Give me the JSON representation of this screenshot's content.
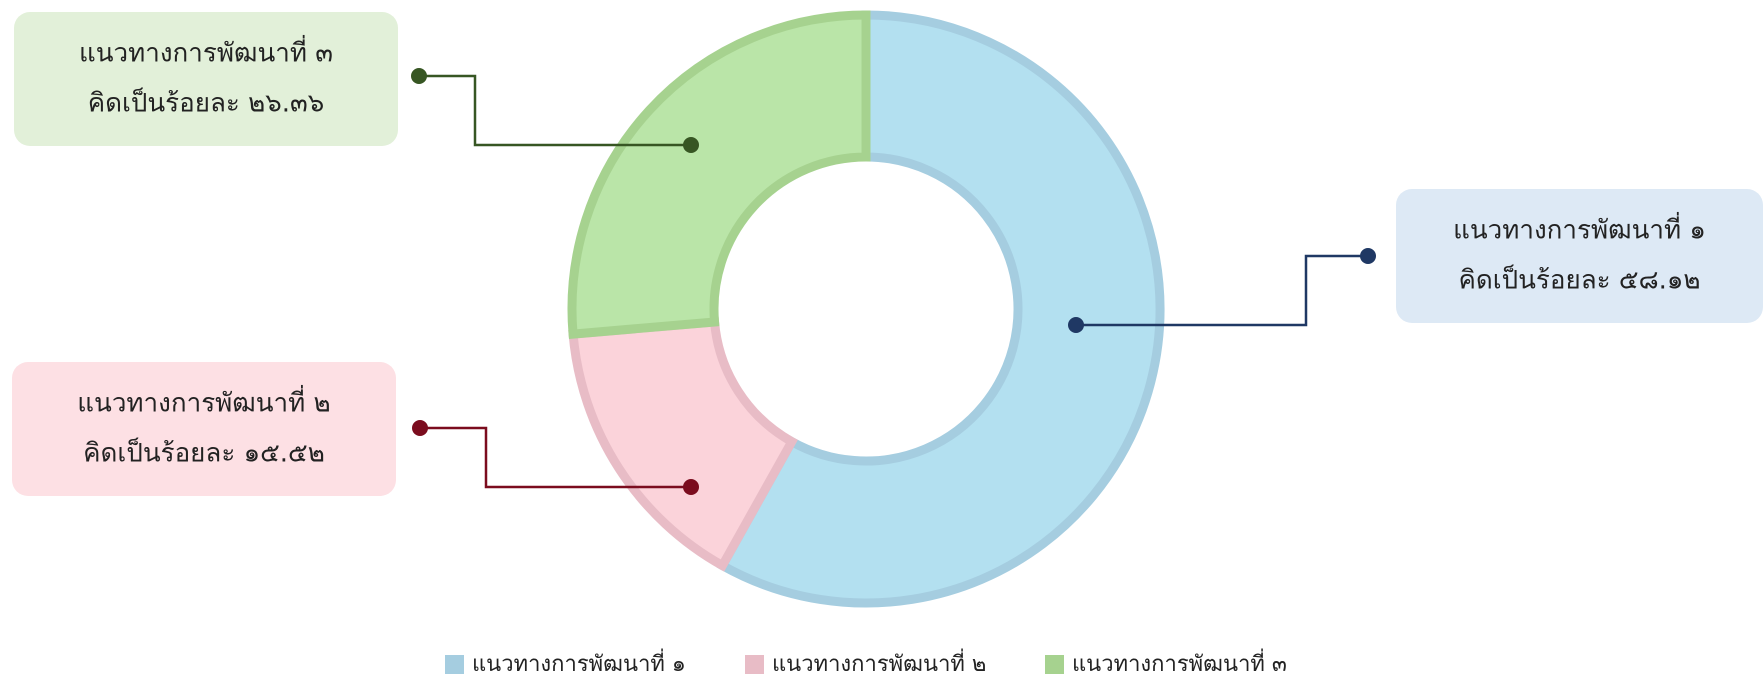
{
  "chart_data": {
    "type": "donut",
    "categories": [
      "แนวทางการพัฒนาที่ ๑",
      "แนวทางการพัฒนาที่ ๒",
      "แนวทางการพัฒนาที่ ๓"
    ],
    "values": [
      58.12,
      15.52,
      26.36
    ],
    "value_labels": [
      "คิดเป็นร้อยละ ๕๘.๑๒",
      "คิดเป็นร้อยละ ๑๕.๕๒",
      "คิดเป็นร้อยละ ๒๖.๓๖"
    ],
    "colors": [
      "#b3e0f0",
      "#fbd3da",
      "#bae5a8"
    ],
    "legend": "bottom"
  }
}
